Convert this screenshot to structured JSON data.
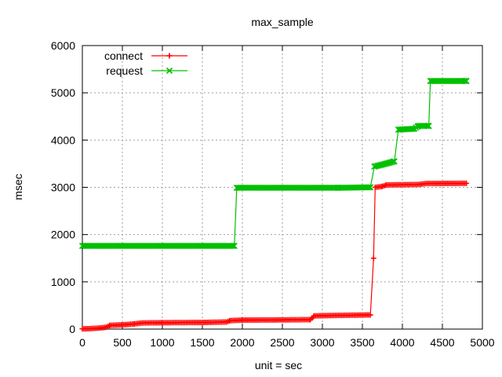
{
  "chart_data": {
    "type": "line",
    "title": "max_sample",
    "xlabel": "unit = sec",
    "ylabel": "msec",
    "xlim": [
      0,
      5000
    ],
    "ylim": [
      0,
      6000
    ],
    "x_ticks": [
      0,
      500,
      1000,
      1500,
      2000,
      2500,
      3000,
      3500,
      4000,
      4500,
      5000
    ],
    "y_ticks": [
      0,
      1000,
      2000,
      3000,
      4000,
      5000,
      6000
    ],
    "grid": true,
    "legend_position": "top-left",
    "series": [
      {
        "name": "connect",
        "color": "#ff0000",
        "marker": "plus",
        "points": [
          [
            0,
            5
          ],
          [
            100,
            10
          ],
          [
            200,
            20
          ],
          [
            300,
            40
          ],
          [
            350,
            80
          ],
          [
            500,
            90
          ],
          [
            650,
            110
          ],
          [
            750,
            130
          ],
          [
            1000,
            135
          ],
          [
            1500,
            140
          ],
          [
            1800,
            150
          ],
          [
            1850,
            180
          ],
          [
            2000,
            190
          ],
          [
            2500,
            195
          ],
          [
            2850,
            200
          ],
          [
            2900,
            280
          ],
          [
            3200,
            290
          ],
          [
            3600,
            300
          ],
          [
            3640,
            1500
          ],
          [
            3660,
            3000
          ],
          [
            3750,
            3020
          ],
          [
            3800,
            3050
          ],
          [
            4200,
            3060
          ],
          [
            4300,
            3080
          ],
          [
            4800,
            3085
          ]
        ]
      },
      {
        "name": "request",
        "color": "#00c000",
        "marker": "cross",
        "points": [
          [
            0,
            1760
          ],
          [
            1900,
            1760
          ],
          [
            1930,
            2990
          ],
          [
            3200,
            2990
          ],
          [
            3600,
            3000
          ],
          [
            3650,
            3440
          ],
          [
            3750,
            3480
          ],
          [
            3900,
            3550
          ],
          [
            3950,
            4220
          ],
          [
            4150,
            4240
          ],
          [
            4200,
            4300
          ],
          [
            4330,
            4300
          ],
          [
            4350,
            5250
          ],
          [
            4800,
            5250
          ]
        ]
      }
    ]
  }
}
